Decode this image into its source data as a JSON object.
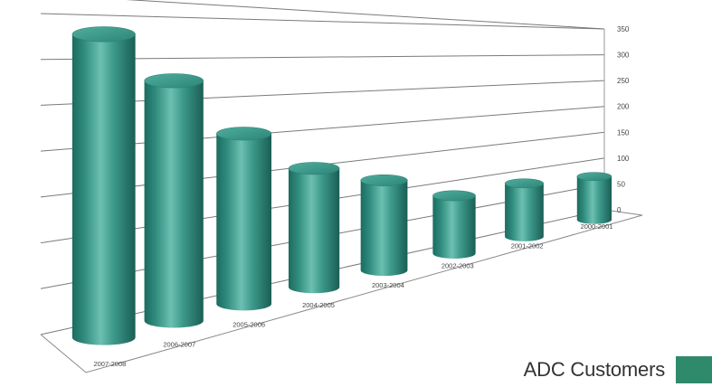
{
  "chart_data": {
    "type": "bar",
    "bar_shape": "3d-cylinder",
    "categories": [
      "2007-2008",
      "2006-2007",
      "2005-2006",
      "2004-2005",
      "2003-2004",
      "2002-2003",
      "2001-2002",
      "2000-2001"
    ],
    "series": [
      {
        "name": "ADC Customers",
        "values": [
          340,
          285,
          215,
          160,
          130,
          90,
          90,
          80
        ]
      }
    ],
    "y_ticks": [
      0,
      50,
      100,
      150,
      200,
      250,
      300,
      350
    ],
    "ylim": [
      0,
      350
    ],
    "grid": true,
    "legend_position": "bottom-right",
    "colors": {
      "bar": "#2e8a7c",
      "legend_swatch": "#2f8a6c"
    }
  },
  "legend": {
    "label": "ADC Customers"
  }
}
